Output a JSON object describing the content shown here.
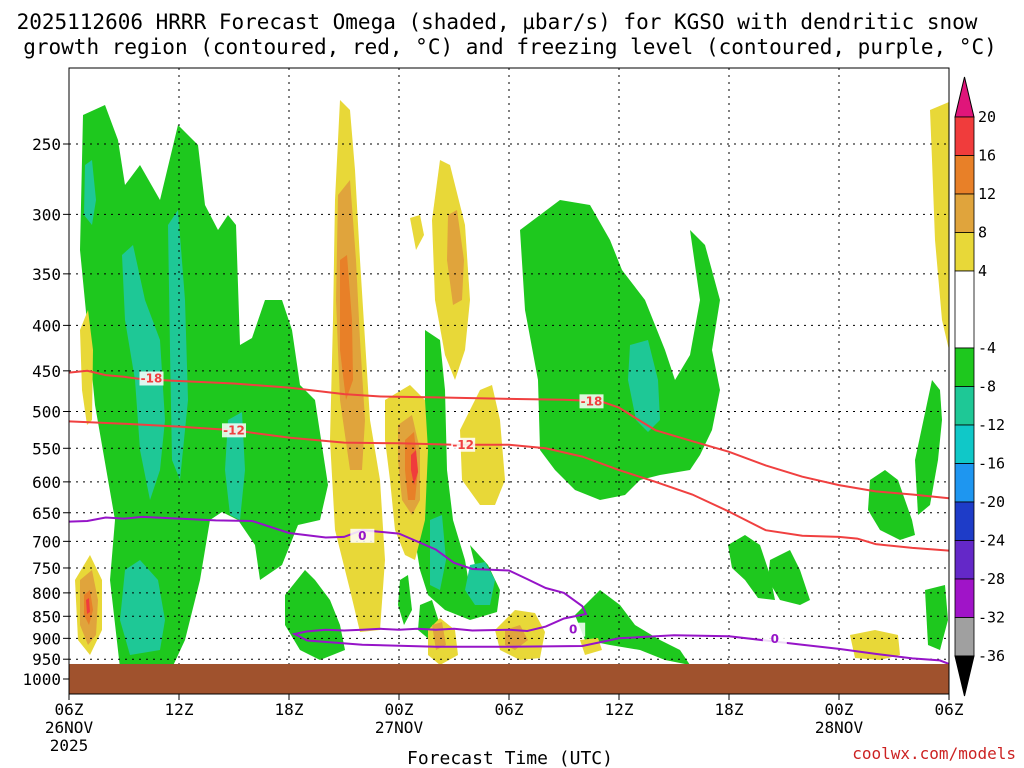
{
  "title": {
    "line1": "2025112606 HRRR Forecast Omega (shaded, µbar/s) for KGSO with dendritic snow",
    "line2": "growth region (contoured, red, °C) and freezing level (contoured, purple, °C)"
  },
  "credit": "coolwx.com/models",
  "chart_data": {
    "type": "heatmap",
    "title": "2025112606 HRRR Forecast Omega (shaded, µbar/s) for KGSO with dendritic snow growth region (contoured, red, °C) and freezing level (contoured, purple, °C)",
    "xlabel": "Forecast Time (UTC)",
    "ylabel": "",
    "y_scale": "log-pressure, inverted",
    "y_ticks": [
      250,
      300,
      350,
      400,
      450,
      500,
      550,
      600,
      650,
      700,
      750,
      800,
      850,
      900,
      950,
      1000
    ],
    "ylim": [
      1000,
      200
    ],
    "x_unit": "hours after 2025-11-26 06Z",
    "xlim": [
      0,
      48
    ],
    "x_ticks": [
      {
        "hour": 0,
        "labels": [
          "06Z",
          "26NOV",
          "2025"
        ]
      },
      {
        "hour": 6,
        "labels": [
          "12Z"
        ]
      },
      {
        "hour": 12,
        "labels": [
          "18Z"
        ]
      },
      {
        "hour": 18,
        "labels": [
          "00Z",
          "27NOV"
        ]
      },
      {
        "hour": 24,
        "labels": [
          "06Z"
        ]
      },
      {
        "hour": 30,
        "labels": [
          "12Z"
        ]
      },
      {
        "hour": 36,
        "labels": [
          "18Z"
        ]
      },
      {
        "hour": 42,
        "labels": [
          "00Z",
          "28NOV"
        ]
      },
      {
        "hour": 48,
        "labels": [
          "06Z"
        ]
      }
    ],
    "grid": true,
    "surface_pressure": 982,
    "colorbar": {
      "labels": [
        20,
        16,
        12,
        8,
        4,
        -4,
        -8,
        -12,
        -16,
        -20,
        -24,
        -28,
        -32,
        -36
      ],
      "bands": [
        {
          "from": 20,
          "to": 24,
          "color": "#e0157a"
        },
        {
          "from": 16,
          "to": 20,
          "color": "#f03c3c"
        },
        {
          "from": 12,
          "to": 16,
          "color": "#e88028"
        },
        {
          "from": 8,
          "to": 12,
          "color": "#e0a43c"
        },
        {
          "from": 4,
          "to": 8,
          "color": "#e8d838"
        },
        {
          "from": -4,
          "to": 4,
          "color": "#ffffff"
        },
        {
          "from": -8,
          "to": -4,
          "color": "#1ec81e"
        },
        {
          "from": -12,
          "to": -8,
          "color": "#1ec896"
        },
        {
          "from": -16,
          "to": -12,
          "color": "#10c8c8"
        },
        {
          "from": -20,
          "to": -16,
          "color": "#1e96f0"
        },
        {
          "from": -24,
          "to": -20,
          "color": "#1e3cc8"
        },
        {
          "from": -28,
          "to": -24,
          "color": "#6428c8"
        },
        {
          "from": -32,
          "to": -28,
          "color": "#a014c8"
        },
        {
          "from": -36,
          "to": -32,
          "color": "#a0a0a0"
        },
        {
          "from": -40,
          "to": -36,
          "color": "#000000"
        }
      ]
    },
    "contours": [
      {
        "level": -18,
        "label": "-18",
        "color": "#f04040",
        "points": [
          [
            0,
            452
          ],
          [
            1,
            450
          ],
          [
            2,
            455
          ],
          [
            3,
            457
          ],
          [
            4,
            460
          ],
          [
            6,
            462
          ],
          [
            9,
            465
          ],
          [
            12,
            470
          ],
          [
            15,
            478
          ],
          [
            17,
            481
          ],
          [
            20,
            482
          ],
          [
            24,
            484
          ],
          [
            27,
            485
          ],
          [
            29,
            487
          ],
          [
            30,
            495
          ],
          [
            31,
            510
          ],
          [
            32,
            525
          ],
          [
            34,
            540
          ],
          [
            36,
            555
          ],
          [
            38,
            575
          ],
          [
            40,
            592
          ],
          [
            42,
            605
          ],
          [
            44,
            615
          ],
          [
            46,
            620
          ],
          [
            48,
            626
          ]
        ],
        "label_at": [
          [
            4.5,
            459
          ],
          [
            28.5,
            487
          ]
        ]
      },
      {
        "level": -12,
        "label": "-12",
        "color": "#f04040",
        "points": [
          [
            0,
            513
          ],
          [
            3,
            516
          ],
          [
            6,
            520
          ],
          [
            9,
            525
          ],
          [
            12,
            535
          ],
          [
            15,
            542
          ],
          [
            18,
            543
          ],
          [
            21,
            545
          ],
          [
            24,
            545
          ],
          [
            26,
            550
          ],
          [
            28,
            562
          ],
          [
            30,
            582
          ],
          [
            32,
            600
          ],
          [
            34,
            620
          ],
          [
            36,
            648
          ],
          [
            38,
            680
          ],
          [
            40,
            690
          ],
          [
            42,
            692
          ],
          [
            43,
            695
          ],
          [
            44,
            705
          ],
          [
            46,
            712
          ],
          [
            48,
            717
          ]
        ],
        "label_at": [
          [
            9,
            525
          ],
          [
            21.5,
            545
          ]
        ]
      },
      {
        "level": 0,
        "label": "0",
        "color": "#9614c8",
        "points": [
          [
            0,
            665
          ],
          [
            1,
            664
          ],
          [
            2,
            658
          ],
          [
            3,
            660
          ],
          [
            4,
            657
          ],
          [
            6,
            660
          ],
          [
            8,
            663
          ],
          [
            10,
            664
          ],
          [
            12,
            685
          ],
          [
            14,
            693
          ],
          [
            15,
            692
          ],
          [
            16,
            680
          ],
          [
            18,
            686
          ],
          [
            20,
            715
          ],
          [
            21,
            740
          ],
          [
            22,
            752
          ],
          [
            24,
            755
          ],
          [
            25,
            772
          ],
          [
            26,
            790
          ],
          [
            27,
            800
          ],
          [
            28,
            828
          ],
          [
            28.2,
            845
          ],
          [
            27,
            855
          ],
          [
            26,
            873
          ],
          [
            25,
            883
          ],
          [
            24,
            880
          ],
          [
            22,
            882
          ],
          [
            21,
            878
          ],
          [
            20,
            880
          ],
          [
            19,
            878
          ],
          [
            18,
            880
          ],
          [
            17,
            878
          ],
          [
            16,
            880
          ],
          [
            15,
            882
          ],
          [
            14,
            880
          ],
          [
            13,
            884
          ],
          [
            12.3,
            890
          ],
          [
            13,
            905
          ],
          [
            16,
            915
          ],
          [
            20,
            920
          ],
          [
            24,
            920
          ],
          [
            28,
            918
          ],
          [
            30,
            900
          ],
          [
            33,
            893
          ],
          [
            36,
            895
          ],
          [
            38,
            905
          ],
          [
            40,
            915
          ],
          [
            42,
            925
          ],
          [
            44,
            937
          ],
          [
            46,
            948
          ],
          [
            47.5,
            953
          ],
          [
            48,
            962
          ]
        ],
        "label_at": [
          [
            16,
            690
          ],
          [
            27.5,
            880
          ],
          [
            38.5,
            902
          ]
        ]
      }
    ]
  }
}
